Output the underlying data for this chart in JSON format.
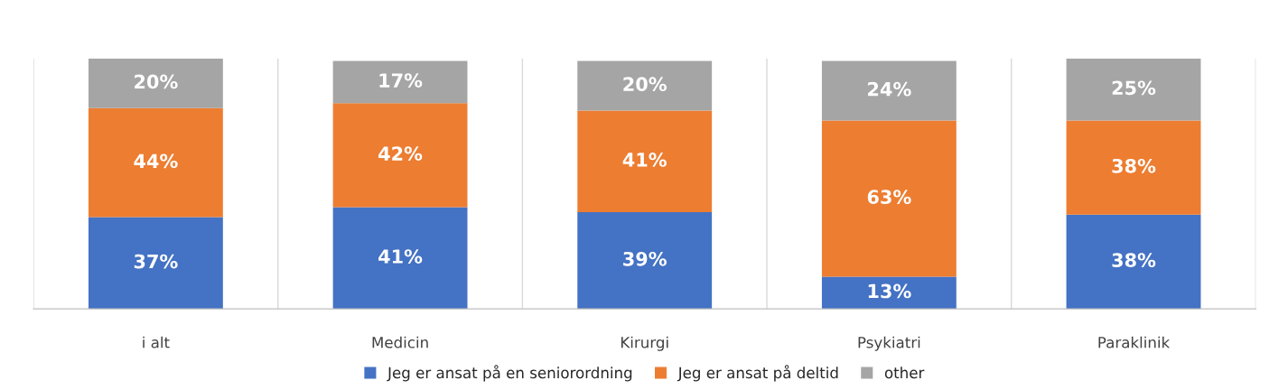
{
  "chart_data": {
    "type": "bar",
    "stacked": true,
    "grid": "x",
    "legend": "bottom",
    "categories": [
      "i alt",
      "Medicin",
      "Kirurgi",
      "Psykiatri",
      "Paraklinik"
    ],
    "series": [
      {
        "name": "Jeg er ansat på en seniorordning",
        "color": "#4472c4",
        "values": [
          37,
          41,
          39,
          13,
          38
        ],
        "value_labels": [
          "37%",
          "41%",
          "39%",
          "13%",
          "38%"
        ]
      },
      {
        "name": "Jeg er ansat på deltid",
        "color": "#ed7d31",
        "values": [
          44,
          42,
          41,
          63,
          38
        ],
        "value_labels": [
          "44%",
          "42%",
          "41%",
          "63%",
          "38%"
        ]
      },
      {
        "name": "other",
        "color": "#a5a5a5",
        "values": [
          20,
          17,
          20,
          24,
          25
        ],
        "value_labels": [
          "20%",
          "17%",
          "20%",
          "24%",
          "25%"
        ]
      }
    ]
  }
}
